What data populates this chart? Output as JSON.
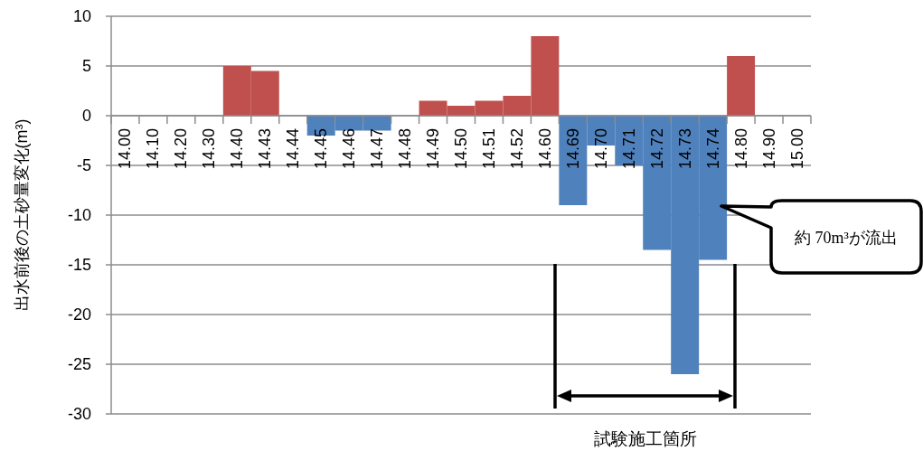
{
  "chart_data": {
    "type": "bar",
    "ylabel": "出水前後の土砂量変化(m³)",
    "categories": [
      "14.00",
      "14.10",
      "14.20",
      "14.30",
      "14.40",
      "14.43",
      "14.44",
      "14.45",
      "14.46",
      "14.47",
      "14.48",
      "14.49",
      "14.50",
      "14.51",
      "14.52",
      "14.60",
      "14.69",
      "14.70",
      "14.71",
      "14.72",
      "14.73",
      "14.74",
      "14.80",
      "14.90",
      "15.00"
    ],
    "values": [
      0,
      0,
      0,
      0,
      5,
      4.5,
      0,
      -2,
      -1.5,
      -1.5,
      0,
      1.5,
      1,
      1.5,
      2,
      8,
      -9,
      -3,
      -5,
      -13.5,
      -26,
      -14.5,
      6,
      0,
      0
    ],
    "colors": [
      "#c0504d",
      "#c0504d",
      "#c0504d",
      "#c0504d",
      "#c0504d",
      "#c0504d",
      "#c0504d",
      "#4f81bd",
      "#4f81bd",
      "#4f81bd",
      "#c0504d",
      "#c0504d",
      "#c0504d",
      "#c0504d",
      "#c0504d",
      "#c0504d",
      "#4f81bd",
      "#4f81bd",
      "#4f81bd",
      "#4f81bd",
      "#4f81bd",
      "#4f81bd",
      "#c0504d",
      "#c0504d",
      "#c0504d"
    ],
    "ylim": [
      -30,
      10
    ],
    "yticks": [
      -30,
      -25,
      -20,
      -15,
      -10,
      -5,
      0,
      5,
      10
    ],
    "grid": "y",
    "annotations": [
      "約 70m³が流出",
      "試験施工箇所"
    ]
  }
}
